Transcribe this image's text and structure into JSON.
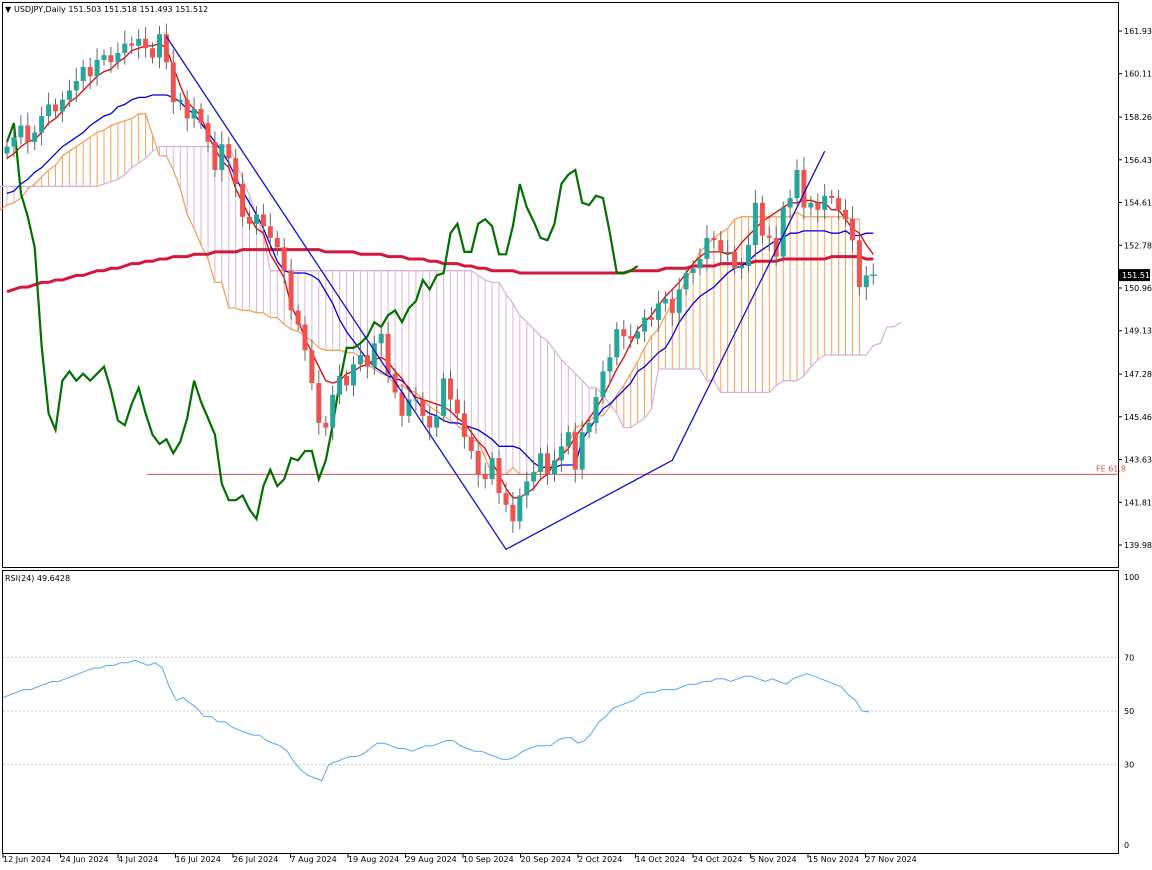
{
  "colors": {
    "up_candle": "#26a69a",
    "down_candle": "#ef5350",
    "tenkan": "#e00000",
    "kijun": "#0000e0",
    "chikou": "#007000",
    "span_up_cloud": "#f4a15d",
    "span_down_cloud": "#d8b4d8",
    "ma200": "#d6163a",
    "fe_line": "#e05050",
    "trendline": "#1010d0",
    "rsi": "#5aa8ee",
    "price_tag_bg": "#000000",
    "price_tag_fg": "#ffffff"
  },
  "chart_data": [
    {
      "type": "candlestick",
      "title": "USDJPY,Daily  151.503 151.518 151.493 151.512",
      "y_ticks": [
        "161.935",
        "160.110",
        "158.260",
        "156.435",
        "154.610",
        "152.785",
        "150.960",
        "149.135",
        "147.285",
        "145.460",
        "143.635",
        "141.810",
        "139.985"
      ],
      "ylim": [
        139.2,
        162.6
      ],
      "x_labels": [
        "12 Jun 2024",
        "24 Jun 2024",
        "4 Jul 2024",
        "16 Jul 2024",
        "26 Jul 2024",
        "7 Aug 2024",
        "19 Aug 2024",
        "29 Aug 2024",
        "10 Sep 2024",
        "20 Sep 2024",
        "2 Oct 2024",
        "14 Oct 2024",
        "24 Oct 2024",
        "5 Nov 2024",
        "15 Nov 2024",
        "27 Nov 2024"
      ],
      "last_price": "151.512",
      "fe_label": "FE 61.8",
      "fe_level": 143.0,
      "bars": 126,
      "cloud_shift": 26,
      "close": [
        157.0,
        157.4,
        157.9,
        157.2,
        157.6,
        158.3,
        158.8,
        158.5,
        159.0,
        159.4,
        159.8,
        160.4,
        160.0,
        160.7,
        160.9,
        160.6,
        161.0,
        161.4,
        161.3,
        161.6,
        161.2,
        160.8,
        161.8,
        160.6,
        158.9,
        159.0,
        158.2,
        158.6,
        158.0,
        157.2,
        156.0,
        157.1,
        156.5,
        155.4,
        154.0,
        153.7,
        154.1,
        153.6,
        153.1,
        152.7,
        151.7,
        150.0,
        149.4,
        148.3,
        146.9,
        145.2,
        145.0,
        146.4,
        147.2,
        146.8,
        147.7,
        148.1,
        147.6,
        148.6,
        149.0,
        147.3,
        146.5,
        145.5,
        146.2,
        146.2,
        145.5,
        145.0,
        145.5,
        147.1,
        146.2,
        145.6,
        144.6,
        144.0,
        143.0,
        142.8,
        143.7,
        142.2,
        141.7,
        141.0,
        142.1,
        142.7,
        143.1,
        143.9,
        143.0,
        143.6,
        144.2,
        144.8,
        143.2,
        144.8,
        145.2,
        146.3,
        147.4,
        148.0,
        149.2,
        148.9,
        148.8,
        149.1,
        149.7,
        149.6,
        150.3,
        150.5,
        149.9,
        150.9,
        151.6,
        151.8,
        152.2,
        153.1,
        153.0,
        152.5,
        152.5,
        151.8,
        151.9,
        152.8,
        154.6,
        153.2,
        153.1,
        152.3,
        154.4,
        154.8,
        156.0,
        154.4,
        154.6,
        154.3,
        154.9,
        154.8,
        154.3,
        153.9,
        153.0,
        151.0,
        151.5,
        151.512
      ],
      "tenkan": [
        156.5,
        156.7,
        157.0,
        157.2,
        157.3,
        157.6,
        158.0,
        158.2,
        158.5,
        158.9,
        159.1,
        159.4,
        159.7,
        160.0,
        160.2,
        160.3,
        160.6,
        160.8,
        161.1,
        161.2,
        161.3,
        161.3,
        161.4,
        161.2,
        160.4,
        159.6,
        158.9,
        158.6,
        158.3,
        157.5,
        156.9,
        156.4,
        156.1,
        155.2,
        154.6,
        154.0,
        153.5,
        153.3,
        152.4,
        151.9,
        151.4,
        150.2,
        149.6,
        148.8,
        148.2,
        147.6,
        147.0,
        146.9,
        147.0,
        147.3,
        147.4,
        147.6,
        147.7,
        147.9,
        148.0,
        147.8,
        147.4,
        147.1,
        146.6,
        146.3,
        146.2,
        146.1,
        146.0,
        145.9,
        145.7,
        145.4,
        145.2,
        144.8,
        144.4,
        144.1,
        143.5,
        143.0,
        142.4,
        142.0,
        142.0,
        142.2,
        142.4,
        142.8,
        143.0,
        143.5,
        143.8,
        144.1,
        144.6,
        145.0,
        145.4,
        145.8,
        146.3,
        146.9,
        147.5,
        148.0,
        148.6,
        149.2,
        149.5,
        149.8,
        150.2,
        150.6,
        150.9,
        151.2,
        151.6,
        152.0,
        152.3,
        152.5,
        152.5,
        152.5,
        152.4,
        152.5,
        152.9,
        153.2,
        153.5,
        153.8,
        154.0,
        154.2,
        154.4,
        154.6,
        154.6,
        154.7,
        154.7,
        154.6,
        154.6,
        154.3,
        154.3,
        153.9,
        153.5,
        153.3,
        152.8,
        152.4
      ],
      "kijun": [
        155.0,
        155.1,
        155.4,
        155.6,
        155.9,
        156.1,
        156.4,
        156.7,
        157.0,
        157.2,
        157.4,
        157.6,
        157.9,
        158.1,
        158.3,
        158.4,
        158.7,
        158.8,
        159.0,
        159.1,
        159.1,
        159.2,
        159.2,
        159.2,
        159.1,
        158.9,
        158.6,
        158.4,
        158.0,
        157.6,
        157.2,
        156.8,
        156.3,
        155.7,
        155.1,
        154.6,
        154.1,
        153.5,
        152.8,
        152.1,
        151.7,
        151.6,
        151.6,
        151.6,
        151.5,
        151.3,
        150.8,
        150.3,
        149.6,
        149.1,
        148.7,
        148.3,
        147.9,
        147.6,
        147.4,
        147.2,
        147.1,
        147.0,
        146.7,
        146.2,
        145.8,
        145.6,
        145.5,
        145.3,
        145.2,
        145.2,
        145.1,
        145.0,
        144.9,
        144.7,
        144.5,
        144.2,
        144.2,
        144.2,
        144.1,
        143.8,
        143.5,
        143.3,
        143.3,
        143.3,
        143.4,
        143.4,
        143.4,
        144.5,
        144.9,
        145.4,
        145.8,
        146.0,
        146.3,
        146.6,
        146.9,
        147.4,
        147.6,
        147.9,
        148.2,
        148.4,
        148.9,
        149.5,
        149.9,
        150.3,
        150.6,
        150.8,
        151.0,
        151.3,
        151.6,
        151.8,
        151.9,
        152.1,
        152.4,
        152.6,
        152.8,
        153.0,
        153.1,
        153.3,
        153.3,
        153.4,
        153.4,
        153.4,
        153.4,
        153.3,
        153.3,
        153.4,
        153.2,
        153.2,
        153.3,
        153.3
      ],
      "chikou": [
        157.2,
        158.0,
        155.0,
        154.0,
        152.7,
        148.5,
        145.6,
        144.9,
        147.0,
        147.4,
        147.0,
        147.3,
        147.0,
        147.3,
        147.6,
        146.6,
        145.3,
        145.1,
        146.0,
        146.7,
        145.6,
        144.7,
        144.3,
        144.5,
        143.9,
        144.4,
        145.4,
        147.0,
        146.1,
        145.4,
        144.7,
        142.6,
        141.9,
        141.9,
        142.1,
        141.5,
        141.1,
        142.5,
        143.2,
        142.5,
        142.8,
        143.7,
        143.6,
        144.0,
        144.0,
        142.8,
        143.6,
        145.1,
        146.9,
        148.4,
        148.4,
        148.6,
        148.9,
        149.5,
        149.3,
        149.8,
        150.0,
        149.5,
        150.1,
        150.4,
        151.3,
        150.9,
        151.5,
        151.6,
        153.3,
        153.7,
        152.5,
        152.5,
        153.7,
        153.9,
        153.6,
        152.4,
        152.4,
        153.6,
        155.4,
        154.4,
        153.8,
        153.1,
        153.0,
        153.7,
        155.4,
        155.8,
        156.0,
        154.6,
        154.5,
        154.9,
        154.8,
        153.3,
        151.6,
        151.6,
        151.7,
        151.9
      ],
      "span_a": [
        153.8,
        153.9,
        154.3,
        154.5,
        154.6,
        154.8,
        155.2,
        155.4,
        155.7,
        156.0,
        156.2,
        156.6,
        156.8,
        157.0,
        157.2,
        157.4,
        157.6,
        157.7,
        157.9,
        158.0,
        158.1,
        158.2,
        158.4,
        158.4,
        157.5,
        156.6,
        156.6,
        156.0,
        155.2,
        154.1,
        153.5,
        152.8,
        152.2,
        151.2,
        151.2,
        150.1,
        150.1,
        150.0,
        150.0,
        149.9,
        149.9,
        149.7,
        149.7,
        149.4,
        149.2,
        149.1,
        148.9,
        148.7,
        148.4,
        148.3,
        148.3,
        148.3,
        148.2,
        148.2,
        148.0,
        147.7,
        147.5,
        147.3,
        147.2,
        146.8,
        146.8,
        146.6,
        146.5,
        146.2,
        145.9,
        145.7,
        145.5,
        145.3,
        145.1,
        144.8,
        144.5,
        144.4,
        143.7,
        143.0,
        143.0,
        143.0,
        143.3,
        143.0,
        143.0,
        143.0,
        143.2,
        143.4,
        143.4,
        143.8,
        144.3,
        145.0,
        145.1,
        145.3,
        145.5,
        145.5,
        145.9,
        146.4,
        146.8,
        147.3,
        147.8,
        148.4,
        148.9,
        149.2,
        149.8,
        150.3,
        150.7,
        151.3,
        151.9,
        152.5,
        152.8,
        153.1,
        153.3,
        153.5,
        153.9,
        154.0,
        154.0,
        154.0,
        154.0,
        154.0,
        154.0,
        154.0,
        154.0,
        154.2,
        154.0,
        154.0,
        154.0,
        154.0,
        154.0,
        154.0,
        154.0,
        153.9,
        153.9
      ],
      "span_b": [
        155.3,
        155.3,
        155.3,
        155.3,
        155.3,
        155.3,
        155.3,
        155.3,
        155.3,
        155.3,
        155.3,
        155.3,
        155.3,
        155.3,
        155.3,
        155.3,
        155.3,
        155.4,
        155.5,
        155.6,
        155.8,
        156.1,
        156.3,
        156.5,
        156.8,
        157.0,
        157.0,
        157.0,
        157.0,
        157.0,
        157.0,
        157.0,
        157.0,
        157.0,
        157.0,
        157.0,
        156.4,
        155.6,
        154.9,
        154.0,
        153.2,
        151.7,
        151.7,
        151.7,
        151.7,
        151.7,
        151.7,
        151.7,
        151.7,
        151.7,
        151.7,
        151.7,
        151.7,
        151.7,
        151.7,
        151.7,
        151.7,
        151.7,
        151.7,
        151.7,
        151.7,
        151.7,
        151.7,
        151.7,
        151.7,
        151.7,
        151.7,
        151.7,
        151.7,
        151.7,
        151.7,
        151.5,
        151.3,
        151.2,
        151.2,
        150.7,
        150.3,
        149.8,
        149.5,
        149.2,
        148.9,
        148.7,
        148.3,
        147.9,
        147.6,
        147.3,
        147.0,
        146.7,
        146.7,
        146.4,
        146.0,
        145.6,
        145.0,
        145.0,
        145.2,
        145.4,
        145.8,
        147.5,
        147.5,
        147.5,
        147.5,
        147.5,
        147.5,
        147.5,
        147.0,
        147.0,
        146.5,
        146.5,
        146.5,
        146.5,
        146.5,
        146.5,
        146.5,
        146.5,
        146.8,
        147.0,
        147.0,
        147.0,
        147.2,
        147.6,
        147.9,
        148.1,
        148.1,
        148.1,
        148.1,
        148.1,
        148.1,
        148.1,
        148.5,
        148.6,
        149.3,
        149.3,
        149.5
      ],
      "ma200": [
        150.8,
        150.9,
        151.0,
        151.0,
        151.1,
        151.2,
        151.2,
        151.3,
        151.3,
        151.4,
        151.5,
        151.5,
        151.6,
        151.7,
        151.7,
        151.8,
        151.8,
        151.9,
        152.0,
        152.0,
        152.1,
        152.1,
        152.2,
        152.2,
        152.3,
        152.3,
        152.3,
        152.4,
        152.4,
        152.4,
        152.5,
        152.5,
        152.5,
        152.5,
        152.6,
        152.6,
        152.6,
        152.6,
        152.6,
        152.6,
        152.6,
        152.6,
        152.6,
        152.6,
        152.6,
        152.6,
        152.5,
        152.5,
        152.5,
        152.5,
        152.5,
        152.4,
        152.4,
        152.4,
        152.4,
        152.3,
        152.3,
        152.3,
        152.2,
        152.2,
        152.2,
        152.1,
        152.1,
        152.0,
        152.0,
        152.0,
        151.9,
        151.9,
        151.8,
        151.8,
        151.7,
        151.7,
        151.7,
        151.7,
        151.6,
        151.6,
        151.6,
        151.6,
        151.6,
        151.6,
        151.6,
        151.6,
        151.6,
        151.6,
        151.6,
        151.6,
        151.6,
        151.6,
        151.6,
        151.6,
        151.7,
        151.7,
        151.7,
        151.7,
        151.7,
        151.8,
        151.8,
        151.8,
        151.8,
        151.9,
        151.9,
        151.9,
        151.9,
        152.0,
        152.0,
        152.0,
        152.0,
        152.0,
        152.1,
        152.1,
        152.1,
        152.1,
        152.2,
        152.2,
        152.2,
        152.2,
        152.2,
        152.2,
        152.2,
        152.3,
        152.3,
        152.3,
        152.3,
        152.3,
        152.2,
        152.2
      ],
      "trendline": [
        [
          23,
          161.7
        ],
        [
          72,
          139.8
        ],
        [
          96,
          143.6
        ],
        [
          118,
          156.8
        ]
      ]
    },
    {
      "type": "line",
      "title": "RSI(24) 49.6428",
      "ylim": [
        0,
        100
      ],
      "y_ticks": [
        "100",
        "70",
        "50",
        "30",
        "0"
      ],
      "levels": [
        70,
        50,
        30
      ],
      "values": [
        55,
        56,
        57,
        58,
        58,
        59,
        60,
        61,
        61,
        62,
        63,
        64,
        65,
        66,
        66,
        67,
        67,
        68,
        68,
        69,
        68,
        67,
        68,
        66,
        59,
        54,
        55,
        53,
        51,
        48,
        48,
        46,
        46,
        44,
        43,
        42,
        41,
        41,
        39,
        38,
        37,
        35,
        31,
        28,
        26,
        25,
        24,
        30,
        31,
        32,
        33,
        33,
        34,
        36,
        38,
        38,
        37,
        36,
        36,
        35,
        36,
        37,
        37,
        38,
        39,
        39,
        37,
        36,
        35,
        35,
        34,
        33,
        32,
        32,
        33,
        35,
        36,
        37,
        37,
        37,
        39,
        40,
        40,
        38,
        39,
        42,
        46,
        48,
        51,
        52,
        53,
        54,
        56,
        57,
        57,
        58,
        58,
        58,
        59,
        60,
        60,
        61,
        61,
        62,
        62,
        61,
        62,
        63,
        63,
        62,
        61,
        62,
        61,
        60,
        62,
        63,
        64,
        63,
        62,
        61,
        60,
        59,
        56,
        54,
        50,
        49.6428
      ]
    }
  ]
}
